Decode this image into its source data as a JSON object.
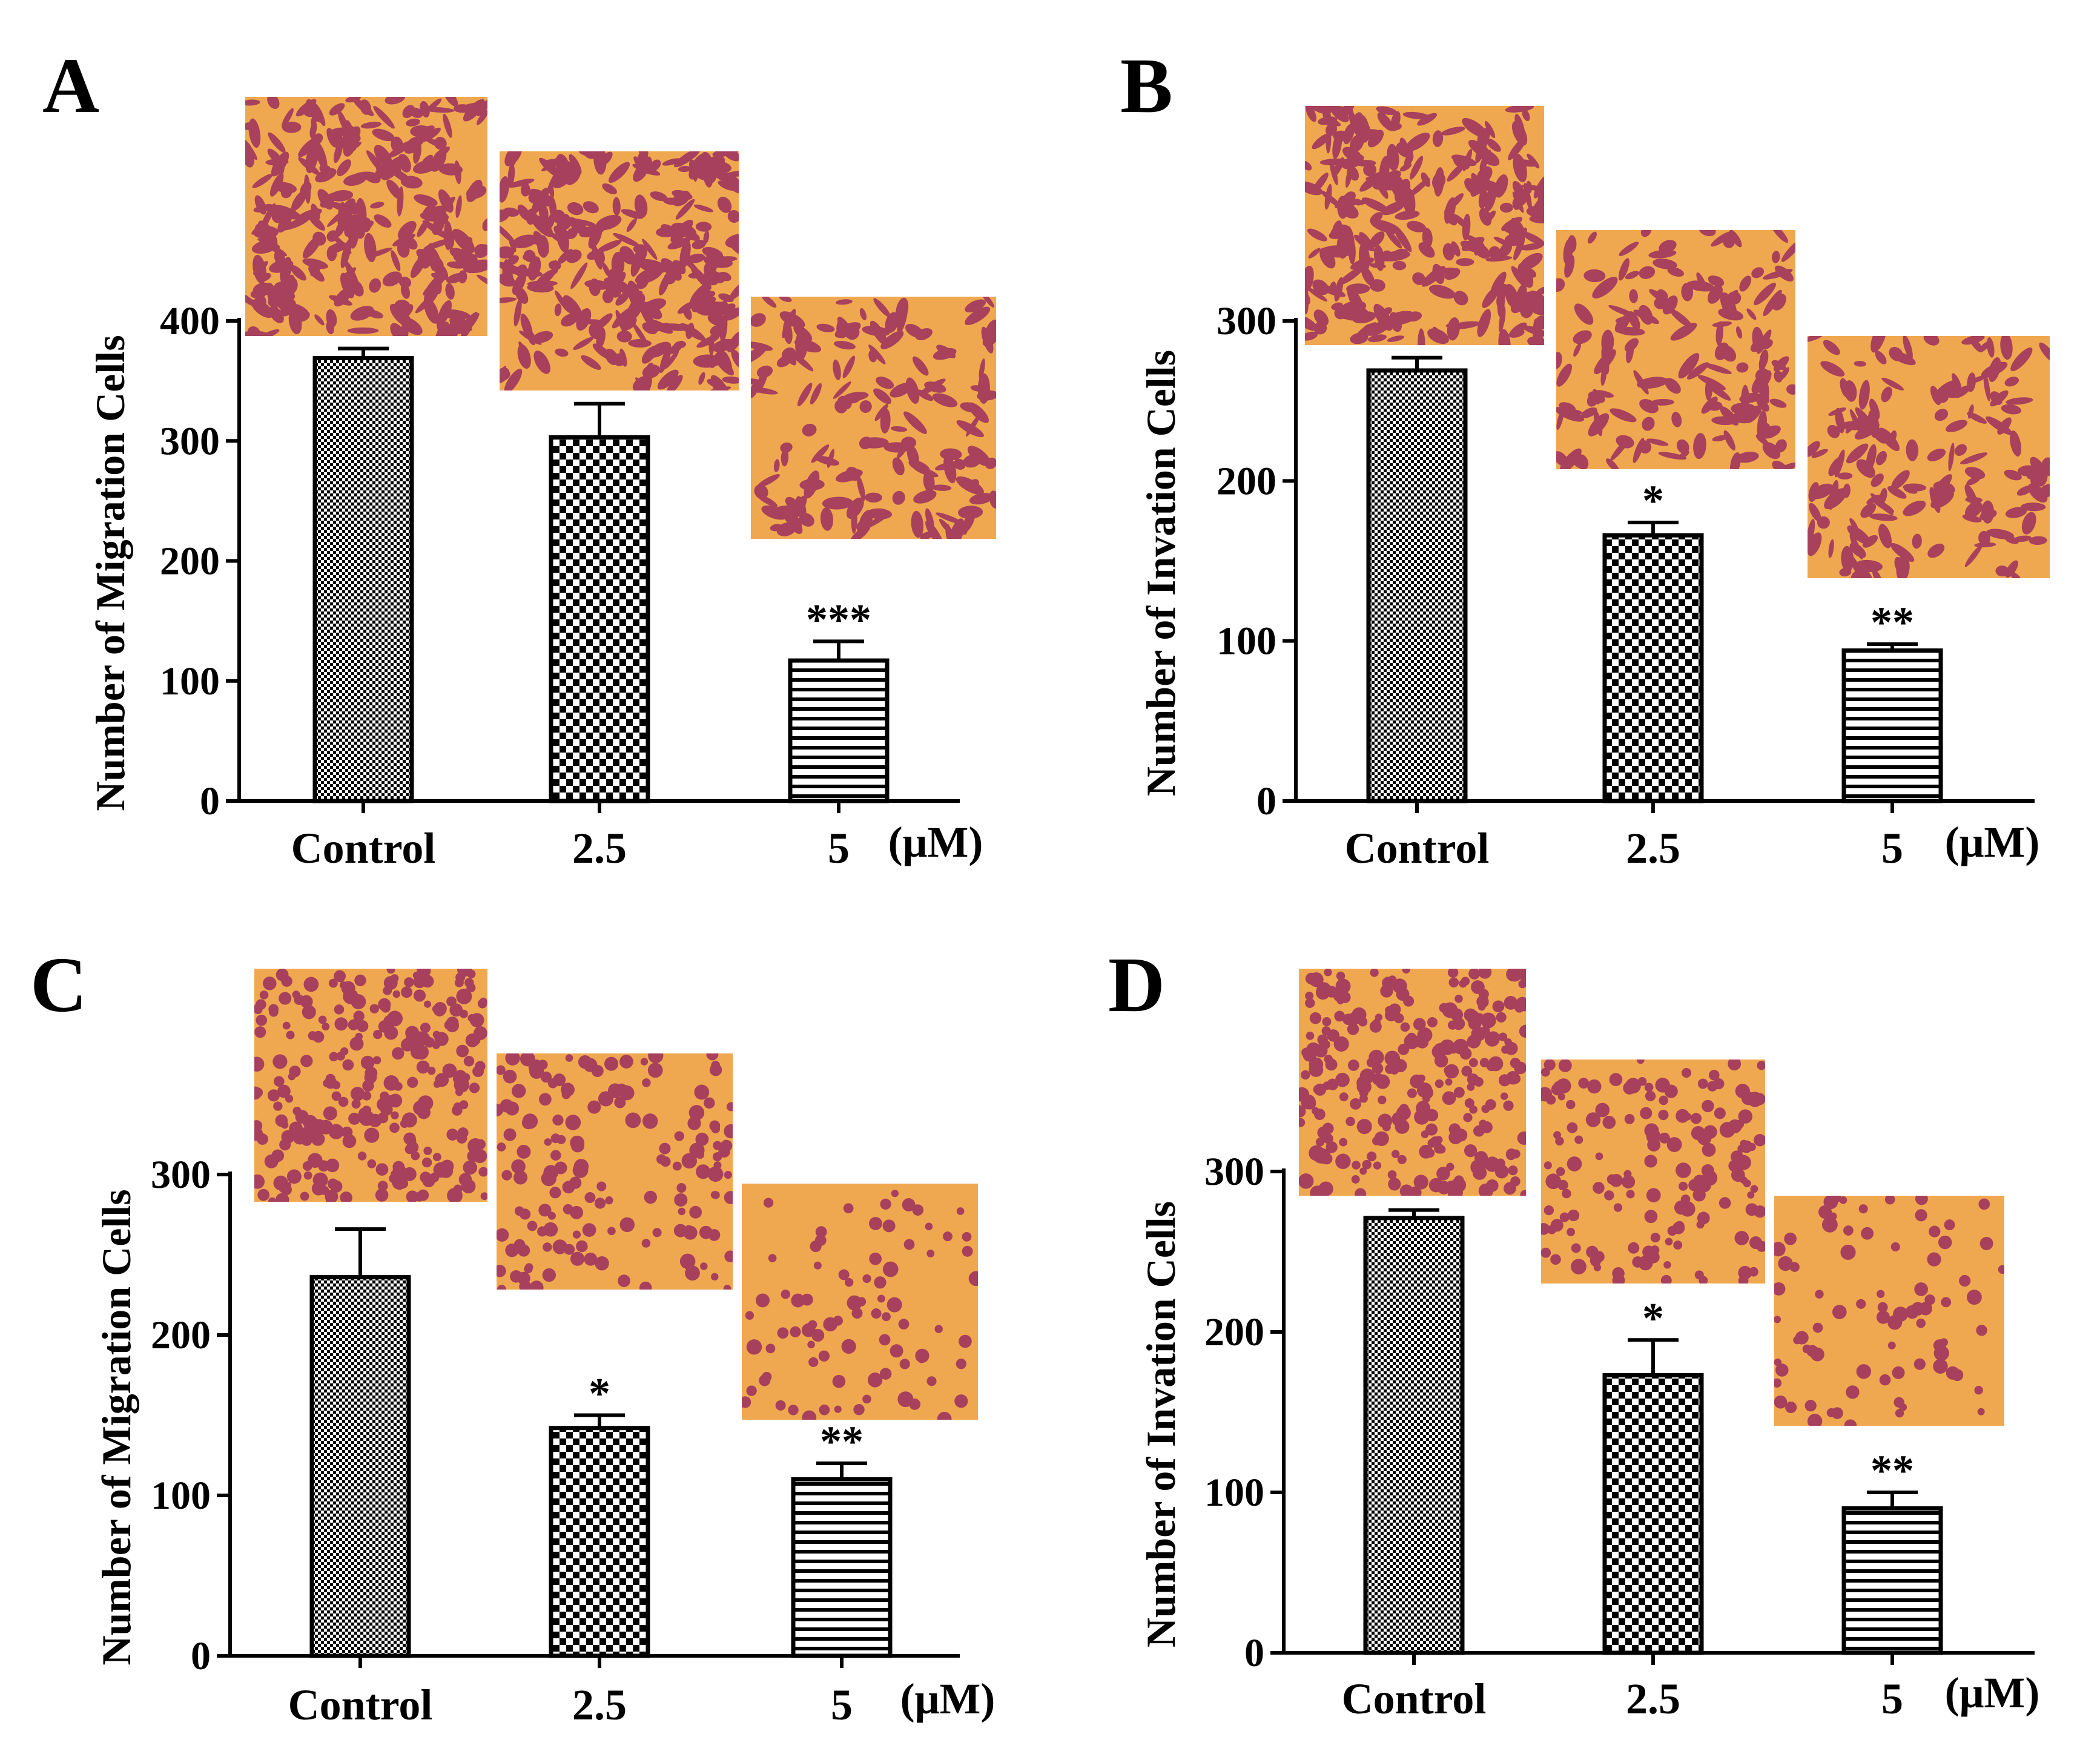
{
  "colors": {
    "axis": "#000000",
    "bar_stroke": "#000000",
    "micro_background": "#f0a850",
    "micro_cells": "#9a2f5f"
  },
  "chart_data": [
    {
      "panel": "A",
      "type": "bar",
      "categories": [
        "Control",
        "2.5",
        "5"
      ],
      "unit": "(μM)",
      "ylabel": "Number of Migration Cells",
      "yticks": [
        0,
        100,
        200,
        300,
        400
      ],
      "ylim": [
        0,
        400
      ],
      "values": [
        369,
        303,
        117
      ],
      "errors": [
        8,
        28,
        16
      ],
      "significance": [
        "",
        "",
        "***"
      ],
      "bar_patterns": [
        "fine-check",
        "check",
        "hstripe"
      ],
      "micrographs": [
        {
          "group": "Control",
          "density": "high",
          "cell_shape": "spindle"
        },
        {
          "group": "2.5",
          "density": "high",
          "cell_shape": "spindle"
        },
        {
          "group": "5",
          "density": "medium",
          "cell_shape": "spindle"
        }
      ]
    },
    {
      "panel": "B",
      "type": "bar",
      "categories": [
        "Control",
        "2.5",
        "5"
      ],
      "unit": "(μM)",
      "ylabel": "Number of Invation Cells",
      "yticks": [
        0,
        100,
        200,
        300
      ],
      "ylim": [
        0,
        300
      ],
      "values": [
        269,
        166,
        94
      ],
      "errors": [
        8,
        8,
        4
      ],
      "significance": [
        "",
        "*",
        "**"
      ],
      "bar_patterns": [
        "fine-check",
        "check",
        "hstripe"
      ],
      "micrographs": [
        {
          "group": "Control",
          "density": "high",
          "cell_shape": "spindle"
        },
        {
          "group": "2.5",
          "density": "medium",
          "cell_shape": "spindle"
        },
        {
          "group": "5",
          "density": "medium",
          "cell_shape": "spindle"
        }
      ]
    },
    {
      "panel": "C",
      "type": "bar",
      "categories": [
        "Control",
        "2.5",
        "5"
      ],
      "unit": "(μM)",
      "ylabel": "Number of Migration Cells",
      "yticks": [
        0,
        100,
        200,
        300
      ],
      "ylim": [
        0,
        300
      ],
      "values": [
        236,
        142,
        110
      ],
      "errors": [
        30,
        8,
        10
      ],
      "significance": [
        "",
        "*",
        "**"
      ],
      "bar_patterns": [
        "fine-check",
        "check",
        "hstripe"
      ],
      "micrographs": [
        {
          "group": "Control",
          "density": "high",
          "cell_shape": "round"
        },
        {
          "group": "2.5",
          "density": "medium",
          "cell_shape": "round"
        },
        {
          "group": "5",
          "density": "low",
          "cell_shape": "round"
        }
      ]
    },
    {
      "panel": "D",
      "type": "bar",
      "categories": [
        "Control",
        "2.5",
        "5"
      ],
      "unit": "(μM)",
      "ylabel": "Number of Invation Cells",
      "yticks": [
        0,
        100,
        200,
        300
      ],
      "ylim": [
        0,
        300
      ],
      "values": [
        271,
        173,
        90
      ],
      "errors": [
        5,
        22,
        10
      ],
      "significance": [
        "",
        "*",
        "**"
      ],
      "bar_patterns": [
        "fine-check",
        "check",
        "hstripe"
      ],
      "micrographs": [
        {
          "group": "Control",
          "density": "high",
          "cell_shape": "round"
        },
        {
          "group": "2.5",
          "density": "medium",
          "cell_shape": "round"
        },
        {
          "group": "5",
          "density": "low",
          "cell_shape": "round"
        }
      ]
    }
  ]
}
